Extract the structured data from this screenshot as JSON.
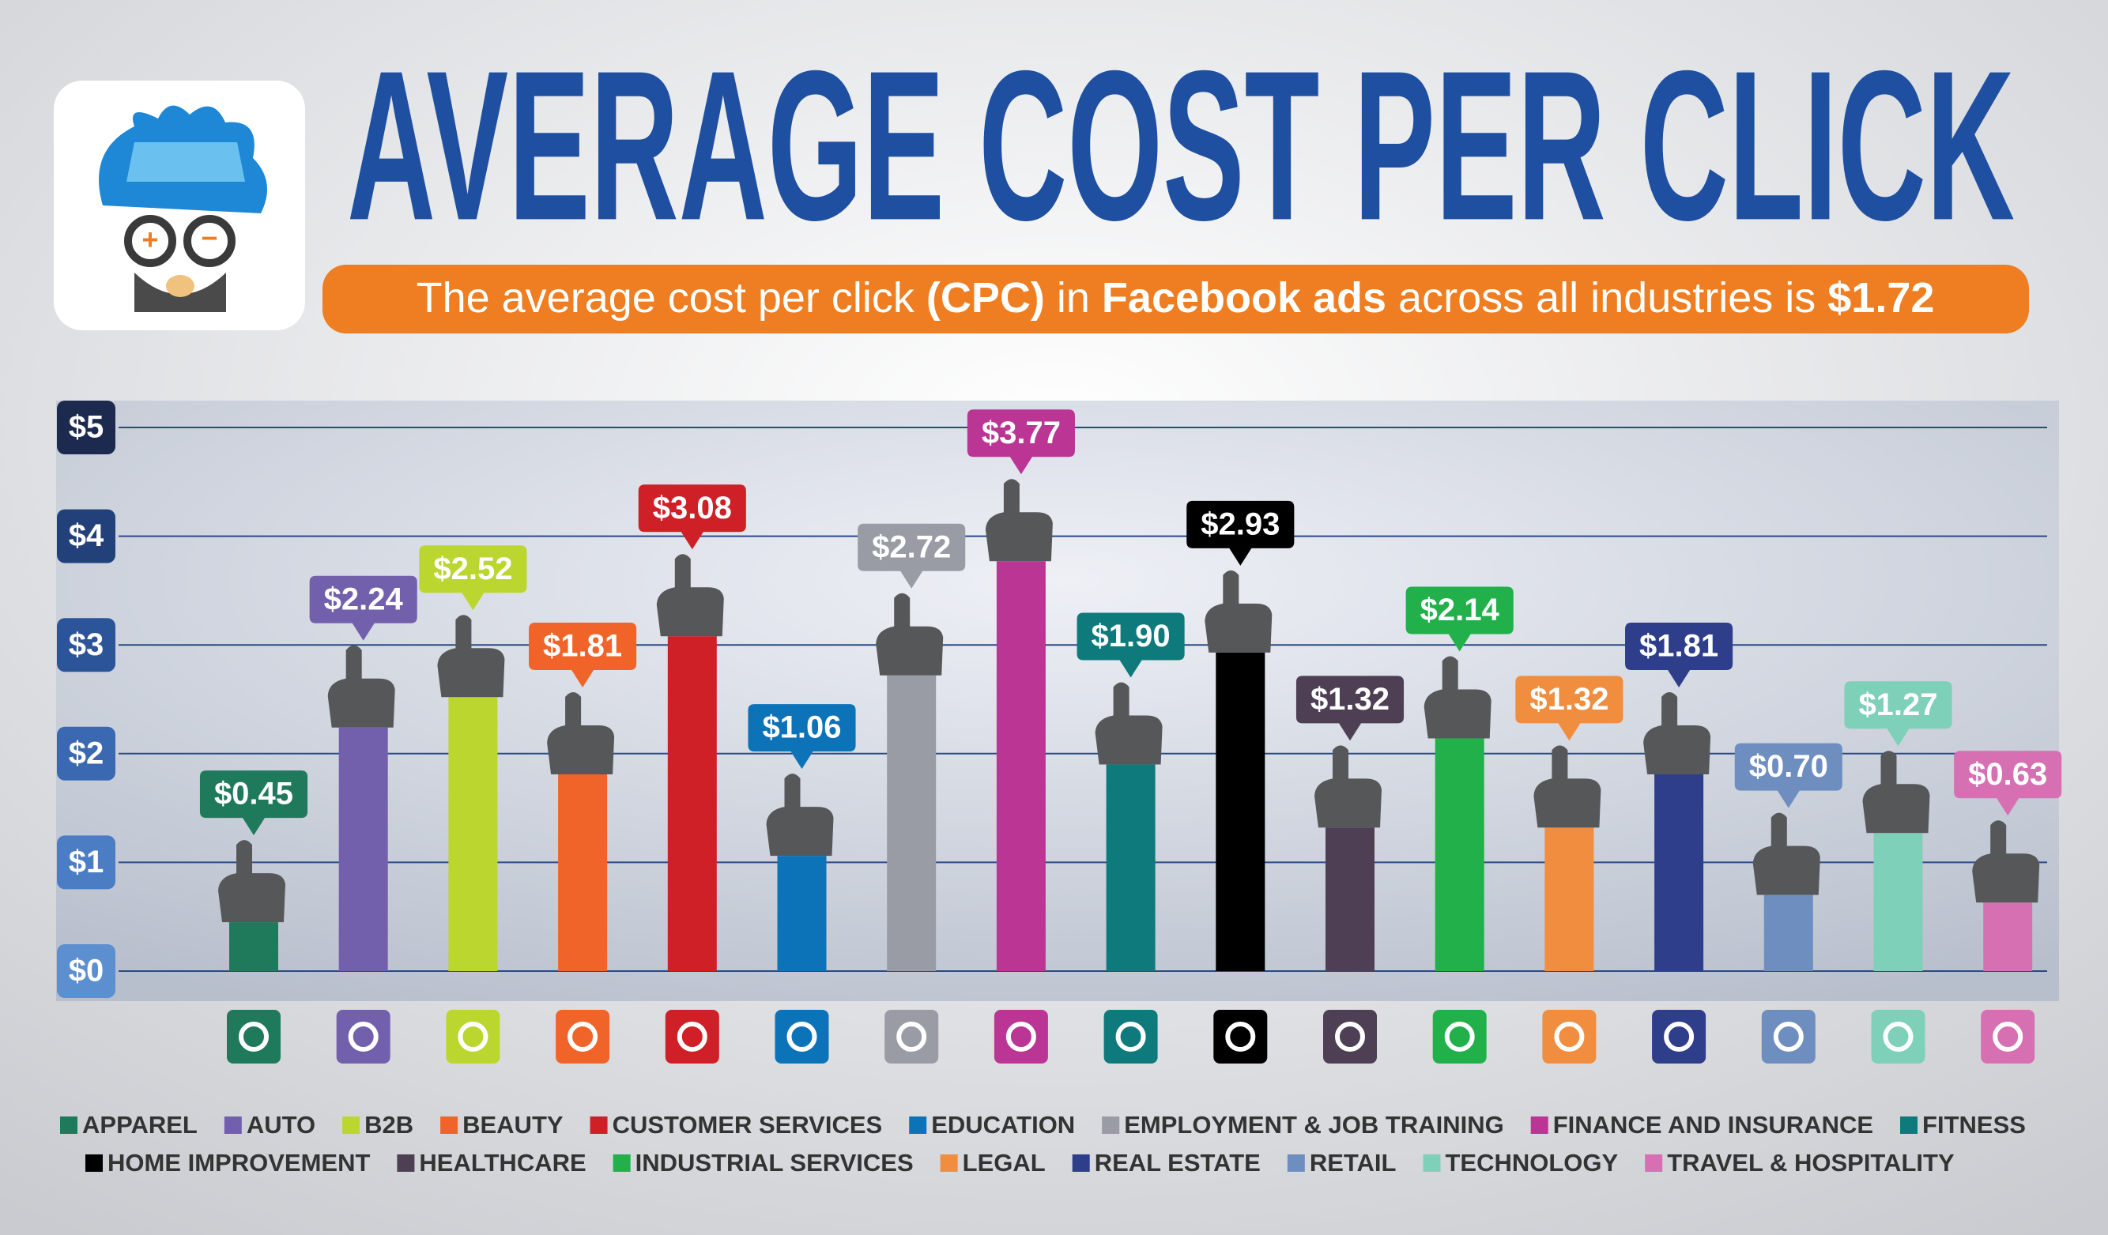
{
  "chart_data": {
    "type": "bar",
    "title": "AVERAGE COST PER CLICK",
    "subtitle": [
      "The average cost per click ",
      "(CPC)",
      " in ",
      "Facebook ads",
      " across all industries is ",
      "$1.72"
    ],
    "categories": [
      "APPAREL",
      "AUTO",
      "B2B",
      "BEAUTY",
      "CUSTOMER SERVICES",
      "EDUCATION",
      "EMPLOYMENT & JOB TRAINING",
      "FINANCE AND INSURANCE",
      "FITNESS",
      "HOME IMPROVEMENT",
      "HEALTHCARE",
      "INDUSTRIAL SERVICES",
      "LEGAL",
      "REAL ESTATE",
      "RETAIL",
      "TECHNOLOGY",
      "TRAVEL & HOSPITALITY"
    ],
    "values": [
      0.45,
      2.24,
      2.52,
      1.81,
      3.08,
      1.06,
      2.72,
      3.77,
      1.9,
      2.93,
      1.32,
      2.14,
      1.32,
      1.81,
      0.7,
      1.27,
      0.63
    ],
    "value_labels": [
      "$0.45",
      "$2.24",
      "$2.52",
      "$1.81",
      "$3.08",
      "$1.06",
      "$2.72",
      "$3.77",
      "$1.90",
      "$2.93",
      "$1.32",
      "$2.14",
      "$1.32",
      "$1.81",
      "$0.70",
      "$1.27",
      "$0.63"
    ],
    "colors": [
      "#1f7a5c",
      "#7360ad",
      "#bcd630",
      "#f0642a",
      "#d02027",
      "#0d73b9",
      "#9a9ca5",
      "#bb3595",
      "#0f7a7c",
      "#000000",
      "#4e3f55",
      "#22b04b",
      "#f08d3e",
      "#2e3e8b",
      "#6e8ec0",
      "#7fd0b8",
      "#d770b2"
    ],
    "ylim": [
      0,
      5
    ],
    "yticks": [
      {
        "value": 0,
        "label": "$0"
      },
      {
        "value": 1,
        "label": "$1"
      },
      {
        "value": 2,
        "label": "$2"
      },
      {
        "value": 3,
        "label": "$3"
      },
      {
        "value": 4,
        "label": "$4"
      },
      {
        "value": 5,
        "label": "$5"
      }
    ],
    "grid": true
  }
}
